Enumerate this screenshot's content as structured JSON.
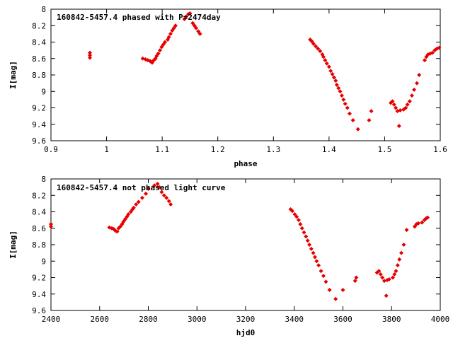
{
  "colors": {
    "points": "#e60000",
    "axes": "#000000",
    "background": "#ffffff"
  },
  "chart_data": [
    {
      "type": "scatter",
      "title": "160842-5457.4 phased with P=2474day",
      "xlabel": "phase",
      "ylabel": "I[mag]",
      "xlim": [
        0.9,
        1.6
      ],
      "ylim": [
        8.0,
        9.6
      ],
      "y_inverted": true,
      "grid": false,
      "xticks": [
        "0.9",
        "1",
        "1.1",
        "1.2",
        "1.3",
        "1.4",
        "1.5",
        "1.6"
      ],
      "yticks": [
        "8",
        "8.2",
        "8.4",
        "8.6",
        "8.8",
        "9",
        "9.2",
        "9.4",
        "9.6"
      ],
      "series": [
        {
          "x": [
            0.97,
            0.97,
            0.97,
            1.065,
            1.07,
            1.074,
            1.078,
            1.08,
            1.082,
            1.085,
            1.088,
            1.09,
            1.093,
            1.096,
            1.099,
            1.102,
            1.105,
            1.11,
            1.112,
            1.115,
            1.118,
            1.121,
            1.124,
            1.14,
            1.143,
            1.147,
            1.15,
            1.155,
            1.158,
            1.161,
            1.165,
            1.168,
            1.366,
            1.369,
            1.372,
            1.376,
            1.38,
            1.384,
            1.388,
            1.39,
            1.393,
            1.396,
            1.4,
            1.403,
            1.406,
            1.409,
            1.412,
            1.414,
            1.417,
            1.42,
            1.423,
            1.426,
            1.429,
            1.433,
            1.437,
            1.443,
            1.452,
            1.472,
            1.476,
            1.511,
            1.514,
            1.517,
            1.52,
            1.523,
            1.526,
            1.528,
            1.534,
            1.538,
            1.541,
            1.545,
            1.549,
            1.553,
            1.558,
            1.562,
            1.572,
            1.575,
            1.578,
            1.582,
            1.586,
            1.59,
            1.594,
            1.598
          ],
          "y": [
            8.53,
            8.56,
            8.59,
            8.6,
            8.61,
            8.62,
            8.63,
            8.64,
            8.65,
            8.62,
            8.6,
            8.57,
            8.54,
            8.5,
            8.46,
            8.43,
            8.4,
            8.37,
            8.34,
            8.3,
            8.26,
            8.23,
            8.2,
            8.12,
            8.09,
            8.06,
            8.05,
            8.17,
            8.2,
            8.23,
            8.27,
            8.3,
            8.37,
            8.39,
            8.42,
            8.45,
            8.48,
            8.51,
            8.55,
            8.58,
            8.62,
            8.66,
            8.7,
            8.75,
            8.79,
            8.83,
            8.87,
            8.92,
            8.96,
            9.0,
            9.05,
            9.1,
            9.15,
            9.2,
            9.27,
            9.35,
            9.46,
            9.35,
            9.24,
            9.14,
            9.12,
            9.16,
            9.2,
            9.24,
            9.42,
            9.23,
            9.22,
            9.2,
            9.16,
            9.12,
            9.05,
            8.98,
            8.9,
            8.8,
            8.62,
            8.58,
            8.55,
            8.54,
            8.53,
            8.5,
            8.48,
            8.47
          ]
        }
      ]
    },
    {
      "type": "scatter",
      "title": "160842-5457.4 not phased light curve",
      "xlabel": "hjd0",
      "ylabel": "I[mag]",
      "xlim": [
        2400,
        4000
      ],
      "ylim": [
        8.0,
        9.6
      ],
      "y_inverted": true,
      "grid": false,
      "xticks": [
        "2400",
        "2600",
        "2800",
        "3000",
        "3200",
        "3400",
        "3600",
        "3800",
        "4000"
      ],
      "yticks": [
        "8",
        "8.2",
        "8.4",
        "8.6",
        "8.8",
        "9",
        "9.2",
        "9.4",
        "9.6"
      ],
      "series": [
        {
          "x": [
            2400,
            2400,
            2640,
            2650,
            2658,
            2665,
            2672,
            2678,
            2685,
            2692,
            2698,
            2705,
            2712,
            2718,
            2728,
            2735,
            2740,
            2750,
            2760,
            2775,
            2790,
            2800,
            2825,
            2838,
            2845,
            2855,
            2865,
            2875,
            2885,
            2892,
            3385,
            3392,
            3402,
            3410,
            3418,
            3425,
            3432,
            3440,
            3448,
            3455,
            3462,
            3470,
            3478,
            3485,
            3492,
            3500,
            3510,
            3520,
            3530,
            3545,
            3570,
            3600,
            3650,
            3655,
            3740,
            3748,
            3755,
            3762,
            3770,
            3778,
            3782,
            3790,
            3805,
            3812,
            3818,
            3825,
            3832,
            3840,
            3850,
            3862,
            3895,
            3902,
            3910,
            3925,
            3935,
            3942,
            3948
          ],
          "y": [
            8.55,
            8.58,
            8.59,
            8.6,
            8.61,
            8.63,
            8.64,
            8.6,
            8.58,
            8.55,
            8.52,
            8.49,
            8.46,
            8.43,
            8.4,
            8.37,
            8.35,
            8.31,
            8.28,
            8.23,
            8.18,
            8.12,
            8.08,
            8.06,
            8.1,
            8.16,
            8.2,
            8.23,
            8.27,
            8.31,
            8.37,
            8.39,
            8.43,
            8.46,
            8.5,
            8.55,
            8.6,
            8.65,
            8.7,
            8.75,
            8.8,
            8.85,
            8.9,
            8.95,
            9.0,
            9.05,
            9.12,
            9.18,
            9.25,
            9.35,
            9.46,
            9.35,
            9.24,
            9.2,
            9.14,
            9.12,
            9.16,
            9.2,
            9.24,
            9.42,
            9.23,
            9.22,
            9.2,
            9.16,
            9.12,
            9.05,
            8.98,
            8.9,
            8.8,
            8.62,
            8.58,
            8.55,
            8.54,
            8.53,
            8.5,
            8.48,
            8.47
          ]
        }
      ]
    }
  ]
}
